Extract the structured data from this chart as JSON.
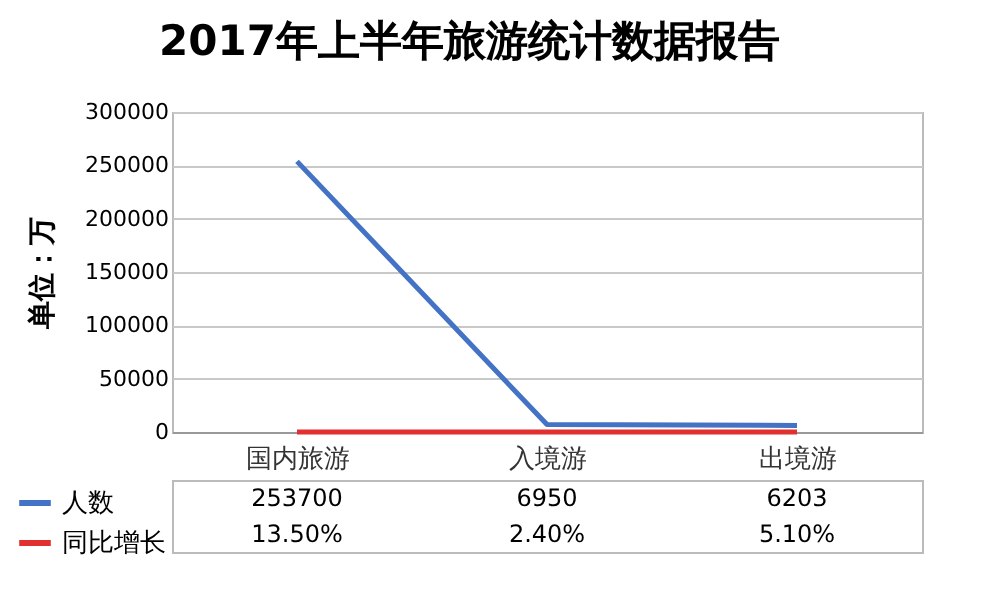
{
  "chart_data": {
    "type": "line",
    "title": "2017年上半年旅游统计数据报告",
    "ylabel": "单位：万",
    "categories": [
      "国内旅游",
      "入境游",
      "出境游"
    ],
    "series": [
      {
        "name": "人数",
        "color": "#4472c4",
        "values": [
          253700,
          6950,
          6203
        ],
        "value_labels": [
          "253700",
          "6950",
          "6203"
        ]
      },
      {
        "name": "同比增长",
        "color": "#e03030",
        "values": [
          13.5,
          2.4,
          5.1
        ],
        "value_labels": [
          "13.50%",
          "2.40%",
          "5.10%"
        ]
      }
    ],
    "ylim": [
      0,
      300000
    ],
    "yticks": [
      0,
      50000,
      100000,
      150000,
      200000,
      250000,
      300000
    ],
    "grid": "y",
    "legend": "bottom left",
    "marker": "none",
    "line_style": "solid"
  }
}
